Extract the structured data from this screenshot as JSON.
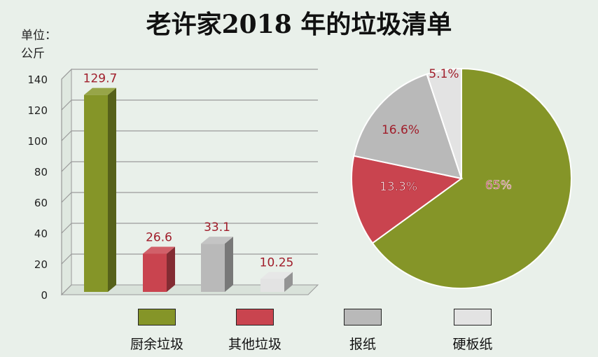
{
  "title": "老许家2018 年的垃圾清单",
  "unit": {
    "line1": "单位：",
    "line2": "公斤"
  },
  "colors": {
    "kitchen": "#859528",
    "other": "#c9444f",
    "newspaper": "#b9b9b9",
    "cardboard": "#e3e3e3"
  },
  "chart_data": [
    {
      "type": "bar",
      "categories": [
        "厨余垃圾",
        "其他垃圾",
        "报纸",
        "硬板纸"
      ],
      "values": [
        129.7,
        26.6,
        33.1,
        10.25
      ],
      "value_labels": [
        "129.7",
        "26.6",
        "33.1",
        "10.25"
      ],
      "ylim": [
        0,
        140
      ],
      "yticks": [
        0,
        20,
        40,
        60,
        80,
        100,
        120,
        140
      ],
      "grid": true,
      "style": "3d"
    },
    {
      "type": "pie",
      "labels": [
        "厨余垃圾",
        "其他垃圾",
        "报纸",
        "硬板纸"
      ],
      "values": [
        65,
        13.3,
        16.6,
        5.1
      ],
      "value_labels": [
        "65%",
        "13.3%",
        "16.6%",
        "5.1%"
      ]
    }
  ],
  "legend": {
    "placement": "bottom",
    "items": [
      {
        "label": "厨余垃圾",
        "color": "#859528"
      },
      {
        "label": "其他垃圾",
        "color": "#c9444f"
      },
      {
        "label": "报纸",
        "color": "#b9b9b9"
      },
      {
        "label": "硬板纸",
        "color": "#e3e3e3"
      }
    ]
  }
}
